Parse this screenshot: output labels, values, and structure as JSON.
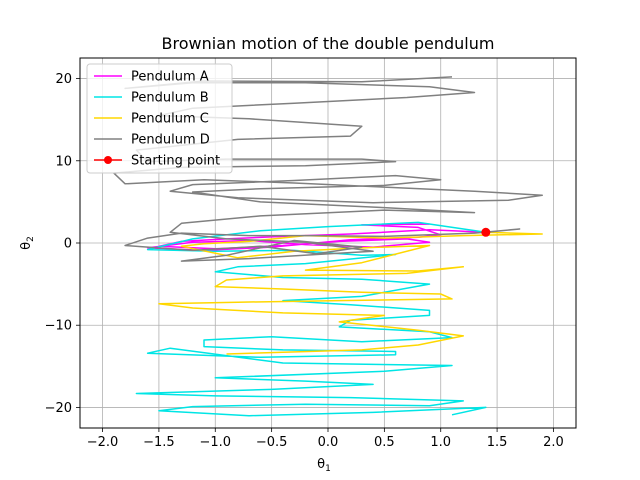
{
  "chart_data": {
    "type": "line",
    "title": "Brownian motion of the double pendulum",
    "xlabel": "θ",
    "xlabel_sub": "1",
    "ylabel": "θ",
    "ylabel_sub": "2",
    "xlim": [
      -2.2,
      2.2
    ],
    "ylim": [
      -22.5,
      22.5
    ],
    "xticks": [
      -2.0,
      -1.5,
      -1.0,
      -0.5,
      0.0,
      0.5,
      1.0,
      1.5,
      2.0
    ],
    "xtick_labels": [
      "−2.0",
      "−1.5",
      "−1.0",
      "−0.5",
      "0.0",
      "0.5",
      "1.0",
      "1.5",
      "2.0"
    ],
    "yticks": [
      -20,
      -10,
      0,
      10,
      20
    ],
    "ytick_labels": [
      "−20",
      "−10",
      "0",
      "10",
      "20"
    ],
    "grid": true,
    "legend_position": "top-left",
    "series": [
      {
        "name": "Pendulum A",
        "color": "#ff00ff",
        "points": [
          [
            1.4,
            1.3
          ],
          [
            0.9,
            1.6
          ],
          [
            0.2,
            1.1
          ],
          [
            -0.4,
            0.8
          ],
          [
            -0.9,
            0.5
          ],
          [
            -1.3,
            0.2
          ],
          [
            -1.5,
            -0.4
          ],
          [
            -1.0,
            -0.7
          ],
          [
            -0.4,
            -0.3
          ],
          [
            0.1,
            0.2
          ],
          [
            0.7,
            0.5
          ],
          [
            0.9,
            0.1
          ],
          [
            0.4,
            -0.5
          ],
          [
            -0.2,
            -0.2
          ],
          [
            -0.7,
            0.3
          ],
          [
            -1.2,
            0.1
          ],
          [
            -1.6,
            -0.6
          ],
          [
            -1.1,
            -0.9
          ],
          [
            -0.5,
            -0.5
          ],
          [
            0.2,
            0.4
          ],
          [
            0.8,
            0.7
          ],
          [
            1.0,
            1.0
          ],
          [
            0.8,
            1.9
          ],
          [
            0.3,
            2.2
          ],
          [
            0.9,
            2.3
          ]
        ]
      },
      {
        "name": "Pendulum B",
        "color": "#00e5e5",
        "points": [
          [
            1.4,
            1.3
          ],
          [
            0.8,
            2.5
          ],
          [
            0.0,
            2.0
          ],
          [
            -0.6,
            1.5
          ],
          [
            -1.2,
            0.5
          ],
          [
            -1.6,
            -0.8
          ],
          [
            -1.0,
            -1.0
          ],
          [
            -0.3,
            -0.9
          ],
          [
            0.3,
            -1.5
          ],
          [
            0.6,
            -1.4
          ],
          [
            -0.2,
            -2.5
          ],
          [
            -0.8,
            -2.9
          ],
          [
            -1.0,
            -3.5
          ],
          [
            -0.4,
            -4.2
          ],
          [
            0.3,
            -4.4
          ],
          [
            0.9,
            -5.0
          ],
          [
            0.3,
            -6.5
          ],
          [
            -0.4,
            -7.0
          ],
          [
            0.2,
            -7.5
          ],
          [
            0.9,
            -8.2
          ],
          [
            0.9,
            -8.8
          ],
          [
            0.2,
            -9.4
          ],
          [
            0.1,
            -10.2
          ],
          [
            0.9,
            -10.8
          ],
          [
            1.1,
            -11.5
          ],
          [
            0.3,
            -12.0
          ],
          [
            -0.5,
            -11.4
          ],
          [
            -1.1,
            -11.8
          ],
          [
            -1.1,
            -12.6
          ],
          [
            -0.4,
            -13.0
          ],
          [
            0.6,
            -13.2
          ],
          [
            0.6,
            -13.6
          ],
          [
            -0.6,
            -13.9
          ],
          [
            -1.6,
            -13.4
          ],
          [
            -1.4,
            -12.8
          ],
          [
            -0.4,
            -14.6
          ],
          [
            1.1,
            -14.9
          ],
          [
            0.5,
            -15.6
          ],
          [
            -1.0,
            -16.4
          ],
          [
            -0.2,
            -16.8
          ],
          [
            0.4,
            -17.2
          ],
          [
            -0.5,
            -17.8
          ],
          [
            -1.7,
            -18.3
          ],
          [
            -1.0,
            -18.6
          ],
          [
            0.2,
            -18.8
          ],
          [
            1.2,
            -19.2
          ],
          [
            0.9,
            -19.8
          ],
          [
            -0.2,
            -19.6
          ],
          [
            -1.2,
            -19.9
          ],
          [
            -1.5,
            -20.4
          ],
          [
            -0.7,
            -21.0
          ],
          [
            0.4,
            -20.6
          ],
          [
            1.4,
            -20.0
          ],
          [
            1.1,
            -20.9
          ]
        ]
      },
      {
        "name": "Pendulum C",
        "color": "#ffd700",
        "points": [
          [
            1.4,
            1.3
          ],
          [
            1.9,
            1.1
          ],
          [
            1.2,
            0.9
          ],
          [
            0.5,
            0.6
          ],
          [
            -0.2,
            0.9
          ],
          [
            -0.7,
            0.2
          ],
          [
            -1.1,
            -0.1
          ],
          [
            -1.3,
            -0.4
          ],
          [
            -0.8,
            -1.8
          ],
          [
            -0.3,
            -1.0
          ],
          [
            0.3,
            -0.6
          ],
          [
            0.9,
            -0.3
          ],
          [
            0.3,
            -2.4
          ],
          [
            -0.2,
            -3.3
          ],
          [
            0.8,
            -3.4
          ],
          [
            1.2,
            -2.9
          ],
          [
            0.7,
            -3.7
          ],
          [
            -0.4,
            -4.0
          ],
          [
            -0.9,
            -4.5
          ],
          [
            -1.0,
            -5.3
          ],
          [
            -0.4,
            -5.6
          ],
          [
            0.3,
            -6.0
          ],
          [
            1.0,
            -6.2
          ],
          [
            1.1,
            -6.8
          ],
          [
            0.1,
            -7.0
          ],
          [
            -0.8,
            -7.2
          ],
          [
            -1.5,
            -7.4
          ],
          [
            -1.2,
            -7.9
          ],
          [
            -0.4,
            -8.5
          ],
          [
            0.5,
            -8.8
          ],
          [
            0.1,
            -9.6
          ],
          [
            0.8,
            -10.6
          ],
          [
            1.2,
            -11.3
          ],
          [
            0.8,
            -12.4
          ],
          [
            0.3,
            -13.0
          ],
          [
            -0.9,
            -13.5
          ]
        ]
      },
      {
        "name": "Pendulum D",
        "color": "#808080",
        "points": [
          [
            1.4,
            1.3
          ],
          [
            1.7,
            1.7
          ],
          [
            1.3,
            1.2
          ],
          [
            0.9,
            1.0
          ],
          [
            0.5,
            0.8
          ],
          [
            -0.1,
            0.9
          ],
          [
            -0.7,
            0.9
          ],
          [
            -1.3,
            1.2
          ],
          [
            -1.6,
            0.6
          ],
          [
            -1.8,
            -0.3
          ],
          [
            -1.2,
            -0.9
          ],
          [
            -0.6,
            -0.4
          ],
          [
            -0.1,
            -1.3
          ],
          [
            0.3,
            -0.5
          ],
          [
            -0.3,
            0.3
          ],
          [
            -0.9,
            -1.5
          ],
          [
            -1.3,
            -2.2
          ],
          [
            -0.7,
            -1.9
          ],
          [
            -0.1,
            -1.4
          ],
          [
            0.4,
            -1.0
          ],
          [
            -0.2,
            0.1
          ],
          [
            -0.9,
            0.5
          ],
          [
            -1.4,
            1.3
          ],
          [
            -1.3,
            2.4
          ],
          [
            -0.6,
            3.3
          ],
          [
            0.5,
            4.0
          ],
          [
            1.3,
            3.7
          ],
          [
            0.5,
            4.3
          ],
          [
            -0.6,
            5.0
          ],
          [
            -1.2,
            6.2
          ],
          [
            -0.6,
            6.6
          ],
          [
            0.5,
            7.0
          ],
          [
            1.0,
            7.7
          ],
          [
            0.6,
            8.2
          ],
          [
            -0.3,
            7.6
          ],
          [
            -1.2,
            7.1
          ],
          [
            -1.4,
            6.3
          ],
          [
            -0.8,
            5.5
          ],
          [
            0.4,
            4.9
          ],
          [
            1.6,
            5.2
          ],
          [
            1.9,
            5.8
          ],
          [
            1.3,
            6.3
          ],
          [
            0.5,
            6.8
          ],
          [
            -0.3,
            7.3
          ],
          [
            -1.1,
            7.7
          ],
          [
            -1.8,
            7.2
          ],
          [
            -1.9,
            8.5
          ],
          [
            -1.3,
            9.2
          ],
          [
            -0.2,
            9.4
          ],
          [
            0.6,
            9.9
          ],
          [
            0.3,
            10.2
          ],
          [
            -0.9,
            10.2
          ],
          [
            -1.6,
            9.9
          ],
          [
            -1.7,
            11.3
          ],
          [
            -0.8,
            12.6
          ],
          [
            0.2,
            13.0
          ],
          [
            0.3,
            14.2
          ],
          [
            -0.7,
            15.1
          ],
          [
            -1.5,
            15.5
          ],
          [
            -1.2,
            16.4
          ],
          [
            -0.3,
            17.0
          ],
          [
            0.7,
            17.7
          ],
          [
            1.3,
            18.3
          ],
          [
            0.9,
            19.0
          ],
          [
            -0.2,
            19.5
          ],
          [
            -1.2,
            19.5
          ],
          [
            -1.8,
            18.8
          ],
          [
            -1.1,
            19.7
          ],
          [
            0.3,
            19.6
          ],
          [
            1.1,
            20.2
          ]
        ]
      },
      {
        "name": "Starting point",
        "color": "#ff0000",
        "marker": "circle",
        "points": [
          [
            1.4,
            1.3
          ]
        ]
      }
    ]
  }
}
